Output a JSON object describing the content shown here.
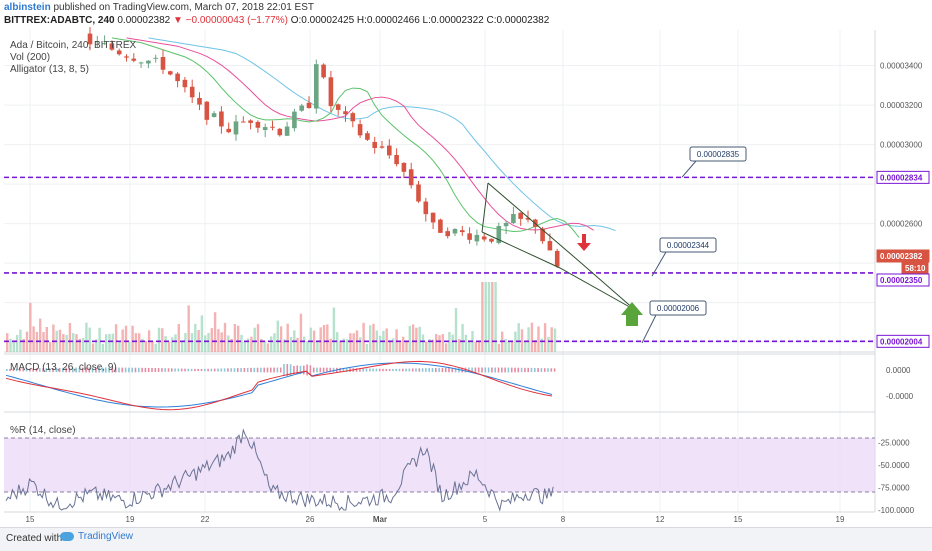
{
  "header": {
    "author": "albinstein",
    "published": " published on TradingView.com, March 07, 2018 22:01 EST",
    "symbol": "BITTREX:ADABTC, 240",
    "last": "0.00002382",
    "change": "▼ −0.00000043 (−1.77%)",
    "ohlc": "O:0.00002425 H:0.00002466 L:0.00002322 C:0.00002382"
  },
  "pane_labels": {
    "main": "Ada / Bitcoin, 240, BITTREX",
    "vol": "Vol (200)",
    "alligator": "Alligator (13, 8, 5)",
    "macd": "MACD (13, 26, close, 9)",
    "wr": "%R (14, close)"
  },
  "footer": {
    "created": "Created with",
    "brand": "TradingView"
  },
  "colors": {
    "up": "#6ba583",
    "down": "#d75442",
    "vol_up": "#a9dcc3",
    "vol_down": "#f2a5a5",
    "level": "#7a16d4",
    "alligator_jaw": "#6fc3e6",
    "alligator_teeth": "#e9509a",
    "alligator_lips": "#5bc26a",
    "macd": "#2f7fd8",
    "signal": "#e0323a",
    "wr": "#6a7394",
    "wr_band": "#ead6f7",
    "arrow_down": "#e0323a",
    "arrow_up": "#5aa53b",
    "wedge": "#2f4f2f"
  },
  "chart_data": {
    "type": "candlestick",
    "x_ticks": [
      "15",
      "19",
      "22",
      "26",
      "Mar",
      "5",
      "8",
      "12",
      "15",
      "19"
    ],
    "price_axis": {
      "labels": [
        "0.00003400",
        "0.00003200",
        "0.00003000",
        "0.00002600",
        "0.00002350"
      ],
      "range": [
        1.95e-05,
        3.58e-05
      ]
    },
    "price_tags": [
      {
        "value": "0.00002834",
        "kind": "level"
      },
      {
        "value": "0.00002382",
        "kind": "last"
      },
      {
        "value": "58:10",
        "kind": "countdown"
      },
      {
        "value": "0.00002350",
        "kind": "level"
      },
      {
        "value": "0.00002004",
        "kind": "level"
      }
    ],
    "horizontal_levels": [
      2.834e-05,
      2.35e-05,
      2.004e-05
    ],
    "callouts": [
      {
        "text": "0.00002835",
        "x": 66,
        "y": 2.835e-05
      },
      {
        "text": "0.00002344",
        "x": 64,
        "y": 2.344e-05
      },
      {
        "text": "0.00002006",
        "x": 64,
        "y": 2.006e-05
      }
    ],
    "close_anchors": [
      [
        0,
        3.52e-05
      ],
      [
        5,
        3.46e-05
      ],
      [
        10,
        3.4e-05
      ],
      [
        15,
        3.18e-05
      ],
      [
        19,
        3.08e-05
      ],
      [
        22,
        3.13e-05
      ],
      [
        26,
        3.07e-05
      ],
      [
        30,
        3.21e-05
      ],
      [
        31,
        3.43e-05
      ],
      [
        33,
        3.2e-05
      ],
      [
        38,
        3.02e-05
      ],
      [
        42,
        2.92e-05
      ],
      [
        44,
        2.8e-05
      ],
      [
        47,
        2.58e-05
      ],
      [
        51,
        2.55e-05
      ],
      [
        55,
        2.53e-05
      ],
      [
        58,
        2.62e-05
      ],
      [
        61,
        2.6e-05
      ],
      [
        63,
        2.44e-05
      ],
      [
        64,
        2.38e-05
      ]
    ],
    "macd_axis": {
      "labels": [
        "0.0000",
        "-0.0000"
      ]
    },
    "wr_axis": {
      "labels": [
        "-25.0000",
        "-50.0000",
        "-75.0000",
        "-100.0000"
      ],
      "range": [
        -100,
        0
      ]
    },
    "wr_anchors": [
      [
        0,
        -88
      ],
      [
        3,
        -70
      ],
      [
        6,
        -95
      ],
      [
        10,
        -82
      ],
      [
        14,
        -90
      ],
      [
        18,
        -78
      ],
      [
        22,
        -60
      ],
      [
        26,
        -40
      ],
      [
        28,
        -10
      ],
      [
        31,
        -80
      ],
      [
        35,
        -88
      ],
      [
        40,
        -92
      ],
      [
        45,
        -84
      ],
      [
        49,
        -30
      ],
      [
        51,
        -85
      ],
      [
        55,
        -60
      ],
      [
        58,
        -95
      ],
      [
        61,
        -80
      ],
      [
        63,
        -85
      ],
      [
        64,
        -82
      ]
    ]
  }
}
